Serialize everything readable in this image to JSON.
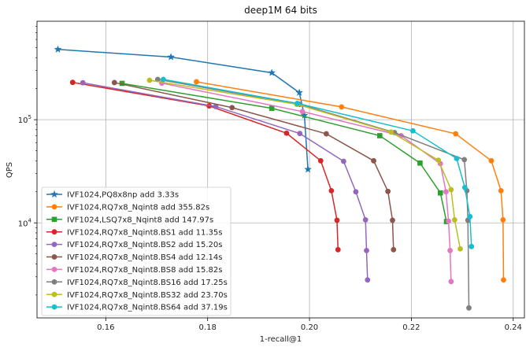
{
  "chart_data": {
    "type": "line",
    "title": "deep1M 64 bits",
    "xlabel": "1-recall@1",
    "ylabel": "QPS",
    "xscale": "linear",
    "yscale": "log",
    "xlim": [
      0.1465,
      0.2422
    ],
    "ylim": [
      1200,
      900000
    ],
    "xticks": [
      0.16,
      0.18,
      0.2,
      0.22,
      0.24
    ],
    "xtick_labels": [
      "0.16",
      "0.18",
      "0.20",
      "0.22",
      "0.24"
    ],
    "yticks": [
      10000,
      100000
    ],
    "ytick_labels": [
      "10^4",
      "10^5"
    ],
    "grid": true,
    "legend_position": "lower-left",
    "series": [
      {
        "name": "IVF1024,PQ8x8np add 3.33s",
        "color": "#1f77b4",
        "marker": "star",
        "x": [
          0.1506,
          0.1728,
          0.1926,
          0.198,
          0.199,
          0.1997
        ],
        "y": [
          480000,
          405000,
          285000,
          183000,
          110000,
          33000
        ]
      },
      {
        "name": "IVF1024,RQ7x8_Nqint8 add 355.82s",
        "color": "#ff7f0e",
        "marker": "circle",
        "x": [
          0.1778,
          0.2063,
          0.2287,
          0.2357,
          0.2376,
          0.238,
          0.2381
        ],
        "y": [
          233000,
          133000,
          73000,
          40000,
          20500,
          10700,
          2800
        ]
      },
      {
        "name": "IVF1024,LSQ7x8_Nqint8 add 147.97s",
        "color": "#2ca02c",
        "marker": "square",
        "x": [
          0.1632,
          0.1926,
          0.2138,
          0.2217,
          0.2257,
          0.2269
        ],
        "y": [
          225000,
          129000,
          70000,
          38000,
          19500,
          10300
        ]
      },
      {
        "name": "IVF1024,RQ7x8_Nqint8.BS1 add 11.35s",
        "color": "#d62728",
        "marker": "circle",
        "x": [
          0.1535,
          0.1803,
          0.1955,
          0.2022,
          0.2043,
          0.2054,
          0.2056
        ],
        "y": [
          230000,
          136000,
          74000,
          40000,
          20500,
          10600,
          5500
        ]
      },
      {
        "name": "IVF1024,RQ7x8_Nqint8.BS2 add 15.20s",
        "color": "#9467bd",
        "marker": "circle",
        "x": [
          0.1555,
          0.1816,
          0.1981,
          0.2067,
          0.2091,
          0.211,
          0.2112,
          0.2114
        ],
        "y": [
          228000,
          134000,
          73500,
          39500,
          20000,
          10700,
          5400,
          2800
        ]
      },
      {
        "name": "IVF1024,RQ7x8_Nqint8.BS4 add 12.14s",
        "color": "#8c564b",
        "marker": "circle",
        "x": [
          0.1617,
          0.1848,
          0.2033,
          0.2126,
          0.2154,
          0.2163,
          0.2165
        ],
        "y": [
          229000,
          131000,
          73000,
          40000,
          20200,
          10600,
          5500
        ]
      },
      {
        "name": "IVF1024,RQ7x8_Nqint8.BS8 add 15.82s",
        "color": "#e377c2",
        "marker": "circle",
        "x": [
          0.171,
          0.1986,
          0.218,
          0.2257,
          0.2268,
          0.2273,
          0.2276,
          0.2278
        ],
        "y": [
          226000,
          120000,
          70000,
          37500,
          20000,
          10400,
          5400,
          2700
        ]
      },
      {
        "name": "IVF1024,RQ7x8_Nqint8.BS16 add 17.25s",
        "color": "#7f7f7f",
        "marker": "circle",
        "x": [
          0.1702,
          0.1981,
          0.2167,
          0.2304,
          0.2309,
          0.2311,
          0.2313
        ],
        "y": [
          246000,
          141000,
          75000,
          41000,
          20500,
          10600,
          1500
        ]
      },
      {
        "name": "IVF1024,RQ7x8_Nqint8.BS32 add 23.70s",
        "color": "#bcbd22",
        "marker": "circle",
        "x": [
          0.1686,
          0.1975,
          0.216,
          0.2253,
          0.2278,
          0.2285,
          0.2296
        ],
        "y": [
          241000,
          141000,
          76000,
          40500,
          21000,
          10700,
          5600
        ]
      },
      {
        "name": "IVF1024,RQ7x8_Nqint8.BS64 add 37.19s",
        "color": "#17becf",
        "marker": "circle",
        "x": [
          0.1713,
          0.1976,
          0.2203,
          0.2289,
          0.2305,
          0.2315,
          0.2318
        ],
        "y": [
          246000,
          144000,
          78000,
          42000,
          22000,
          11500,
          5900
        ]
      }
    ]
  }
}
